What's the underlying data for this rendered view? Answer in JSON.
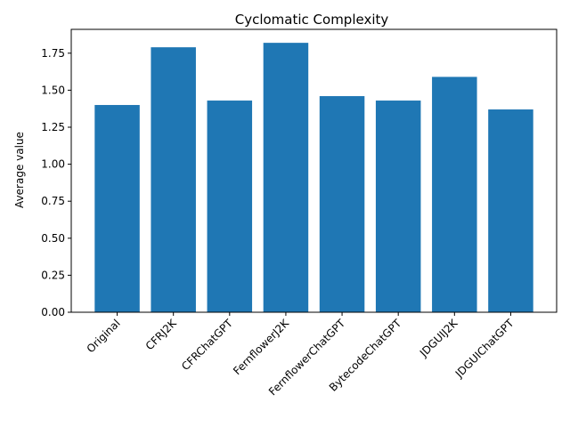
{
  "chart_data": {
    "type": "bar",
    "title": "Cyclomatic Complexity",
    "xlabel": "",
    "ylabel": "Average value",
    "categories": [
      "Original",
      "CFRJ2K",
      "CFRChatGPT",
      "FernflowerJ2K",
      "FernflowerChatGPT",
      "BytecodeChatGPT",
      "JDGUIJ2K",
      "JDGUIChatGPT"
    ],
    "values": [
      1.4,
      1.79,
      1.43,
      1.82,
      1.46,
      1.43,
      1.59,
      1.37
    ],
    "ylim": [
      0,
      1.911
    ],
    "yticks": [
      "0.00",
      "0.25",
      "0.50",
      "0.75",
      "1.00",
      "1.25",
      "1.50",
      "1.75"
    ],
    "bar_color": "#1f77b4",
    "grid": false,
    "legend": "none"
  }
}
